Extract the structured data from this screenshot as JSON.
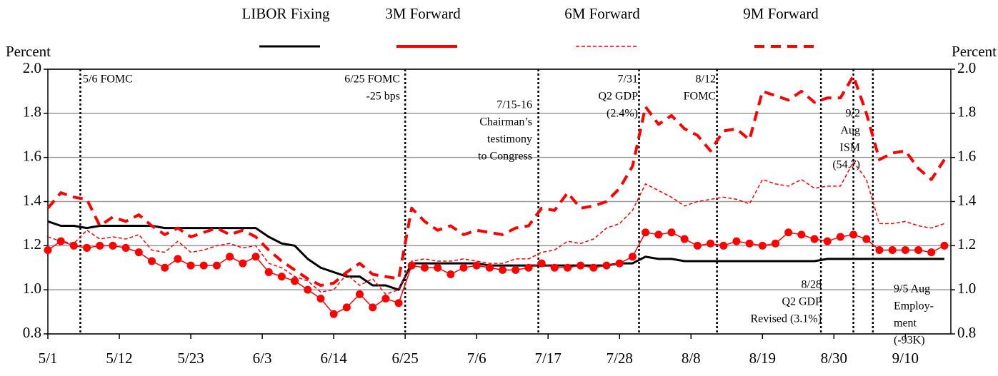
{
  "chart_data": {
    "type": "line",
    "ylabel": "Percent",
    "y2label": "Percent",
    "x": [
      0,
      2,
      4,
      6,
      8,
      10,
      12,
      14,
      16,
      18,
      20,
      22,
      24,
      26,
      28,
      30,
      32,
      34,
      36,
      38,
      40,
      42,
      44,
      46,
      48,
      50,
      52,
      54,
      56,
      58,
      60,
      62,
      64,
      66,
      68,
      70,
      72,
      74,
      76,
      78,
      80,
      82,
      84,
      86,
      88,
      90,
      92,
      94,
      96,
      98,
      100,
      102,
      104,
      106,
      108,
      110,
      112,
      114,
      116,
      118,
      120,
      122,
      124,
      126,
      128,
      130,
      132,
      134,
      136,
      138
    ],
    "xlim": [
      0,
      139
    ],
    "xticks": [
      {
        "value": 0,
        "label": "5/1"
      },
      {
        "value": 11,
        "label": "5/12"
      },
      {
        "value": 22,
        "label": "5/23"
      },
      {
        "value": 33,
        "label": "6/3"
      },
      {
        "value": 44,
        "label": "6/14"
      },
      {
        "value": 55,
        "label": "6/25"
      },
      {
        "value": 66,
        "label": "7/6"
      },
      {
        "value": 77,
        "label": "7/17"
      },
      {
        "value": 88,
        "label": "7/28"
      },
      {
        "value": 99,
        "label": "8/8"
      },
      {
        "value": 110,
        "label": "8/19"
      },
      {
        "value": 121,
        "label": "8/30"
      },
      {
        "value": 132,
        "label": "9/10"
      }
    ],
    "ylim": [
      0.8,
      2.0
    ],
    "yticks": [
      0.8,
      {
        "value": 1.0,
        "label": "1.0"
      },
      1.2,
      1.4,
      1.6,
      1.8,
      {
        "value": 2.0,
        "label": "2.0"
      }
    ],
    "y2lim": [
      0.8,
      2.0
    ],
    "y2ticks": [
      0.8,
      {
        "value": 1.0,
        "label": "1.0"
      },
      1.2,
      1.4,
      1.6,
      1.8,
      {
        "value": 2.0,
        "label": "2.0"
      }
    ],
    "grid": true,
    "series": [
      {
        "name": "LIBOR Fixing",
        "color": "#000000",
        "linestyle": "solid",
        "linewidth": 3,
        "values": [
          1.31,
          1.29,
          1.29,
          1.28,
          1.29,
          1.29,
          1.29,
          1.29,
          1.29,
          1.28,
          1.28,
          1.28,
          1.28,
          1.28,
          1.28,
          1.28,
          1.28,
          1.24,
          1.21,
          1.2,
          1.14,
          1.1,
          1.08,
          1.06,
          1.06,
          1.02,
          1.02,
          1.0,
          1.12,
          1.12,
          1.12,
          1.12,
          1.12,
          1.12,
          1.11,
          1.11,
          1.11,
          1.11,
          1.11,
          1.11,
          1.11,
          1.11,
          1.11,
          1.11,
          1.12,
          1.12,
          1.15,
          1.14,
          1.14,
          1.13,
          1.13,
          1.13,
          1.13,
          1.13,
          1.13,
          1.13,
          1.13,
          1.13,
          1.13,
          1.13,
          1.14,
          1.14,
          1.14,
          1.14,
          1.14,
          1.14,
          1.14,
          1.14,
          1.14,
          1.14
        ]
      },
      {
        "name": "3M Forward",
        "color": "#ff0000",
        "linestyle": "solid",
        "linewidth": 1.5,
        "marker": "circle",
        "values": [
          1.18,
          1.22,
          1.2,
          1.19,
          1.2,
          1.2,
          1.19,
          1.17,
          1.13,
          1.1,
          1.14,
          1.11,
          1.11,
          1.11,
          1.15,
          1.12,
          1.15,
          1.08,
          1.06,
          1.04,
          1.0,
          0.96,
          0.89,
          0.92,
          0.98,
          0.92,
          0.96,
          0.94,
          1.11,
          1.1,
          1.1,
          1.07,
          1.1,
          1.11,
          1.1,
          1.09,
          1.09,
          1.1,
          1.12,
          1.1,
          1.1,
          1.11,
          1.1,
          1.11,
          1.12,
          1.15,
          1.26,
          1.25,
          1.26,
          1.23,
          1.2,
          1.21,
          1.2,
          1.22,
          1.21,
          1.2,
          1.21,
          1.26,
          1.25,
          1.23,
          1.22,
          1.24,
          1.25,
          1.23,
          1.18,
          1.18,
          1.18,
          1.18,
          1.17,
          1.2
        ]
      },
      {
        "name": "6M Forward",
        "color": "#ff0000",
        "linestyle": "dashed",
        "linewidth": 1.5,
        "values": [
          1.24,
          1.22,
          1.21,
          1.27,
          1.23,
          1.24,
          1.23,
          1.25,
          1.18,
          1.17,
          1.22,
          1.17,
          1.18,
          1.2,
          1.21,
          1.19,
          1.2,
          1.12,
          1.1,
          1.06,
          1.04,
          0.99,
          1.0,
          1.07,
          1.02,
          1.05,
          0.98,
          1.0,
          1.13,
          1.14,
          1.13,
          1.13,
          1.14,
          1.13,
          1.12,
          1.12,
          1.14,
          1.14,
          1.17,
          1.18,
          1.22,
          1.21,
          1.23,
          1.28,
          1.3,
          1.36,
          1.48,
          1.45,
          1.42,
          1.38,
          1.4,
          1.41,
          1.42,
          1.41,
          1.39,
          1.5,
          1.48,
          1.47,
          1.5,
          1.46,
          1.47,
          1.47,
          1.58,
          1.5,
          1.3,
          1.3,
          1.31,
          1.29,
          1.28,
          1.3
        ]
      },
      {
        "name": "9M Forward",
        "color": "#ff0000",
        "linestyle": "dashed",
        "linewidth": 4,
        "values": [
          1.37,
          1.44,
          1.42,
          1.41,
          1.29,
          1.33,
          1.31,
          1.34,
          1.29,
          1.25,
          1.28,
          1.24,
          1.26,
          1.28,
          1.25,
          1.27,
          1.24,
          1.18,
          1.13,
          1.09,
          1.05,
          1.02,
          1.03,
          1.08,
          1.12,
          1.07,
          1.06,
          1.05,
          1.37,
          1.31,
          1.27,
          1.29,
          1.25,
          1.27,
          1.26,
          1.25,
          1.28,
          1.29,
          1.37,
          1.36,
          1.44,
          1.37,
          1.38,
          1.4,
          1.46,
          1.56,
          1.83,
          1.75,
          1.79,
          1.73,
          1.7,
          1.63,
          1.72,
          1.73,
          1.68,
          1.9,
          1.88,
          1.86,
          1.9,
          1.85,
          1.87,
          1.87,
          1.97,
          1.8,
          1.59,
          1.62,
          1.63,
          1.55,
          1.5,
          1.59
        ]
      }
    ],
    "events": [
      {
        "x": 5,
        "label": [
          "5/6 FOMC"
        ]
      },
      {
        "x": 55,
        "label": [
          "6/25 FOMC",
          "-25 bps"
        ]
      },
      {
        "x": 75.5,
        "label": [
          "7/15-16",
          "Chairman’s",
          "testimony",
          "to Congress"
        ]
      },
      {
        "x": 91,
        "label": [
          "7/31",
          "Q2 GDP",
          "(2.4%)"
        ]
      },
      {
        "x": 103,
        "label": [
          "8/12",
          "FOMC"
        ]
      },
      {
        "x": 119,
        "label": [
          "8/28",
          "Q2 GDP",
          "Revised (3.1%)"
        ]
      },
      {
        "x": 124,
        "label": [
          "9/2",
          "Aug",
          "ISM",
          "(54.7)"
        ]
      },
      {
        "x": 127,
        "label": [
          "9/5 Aug",
          "Employ-",
          "ment",
          "(-93K)"
        ]
      }
    ]
  }
}
